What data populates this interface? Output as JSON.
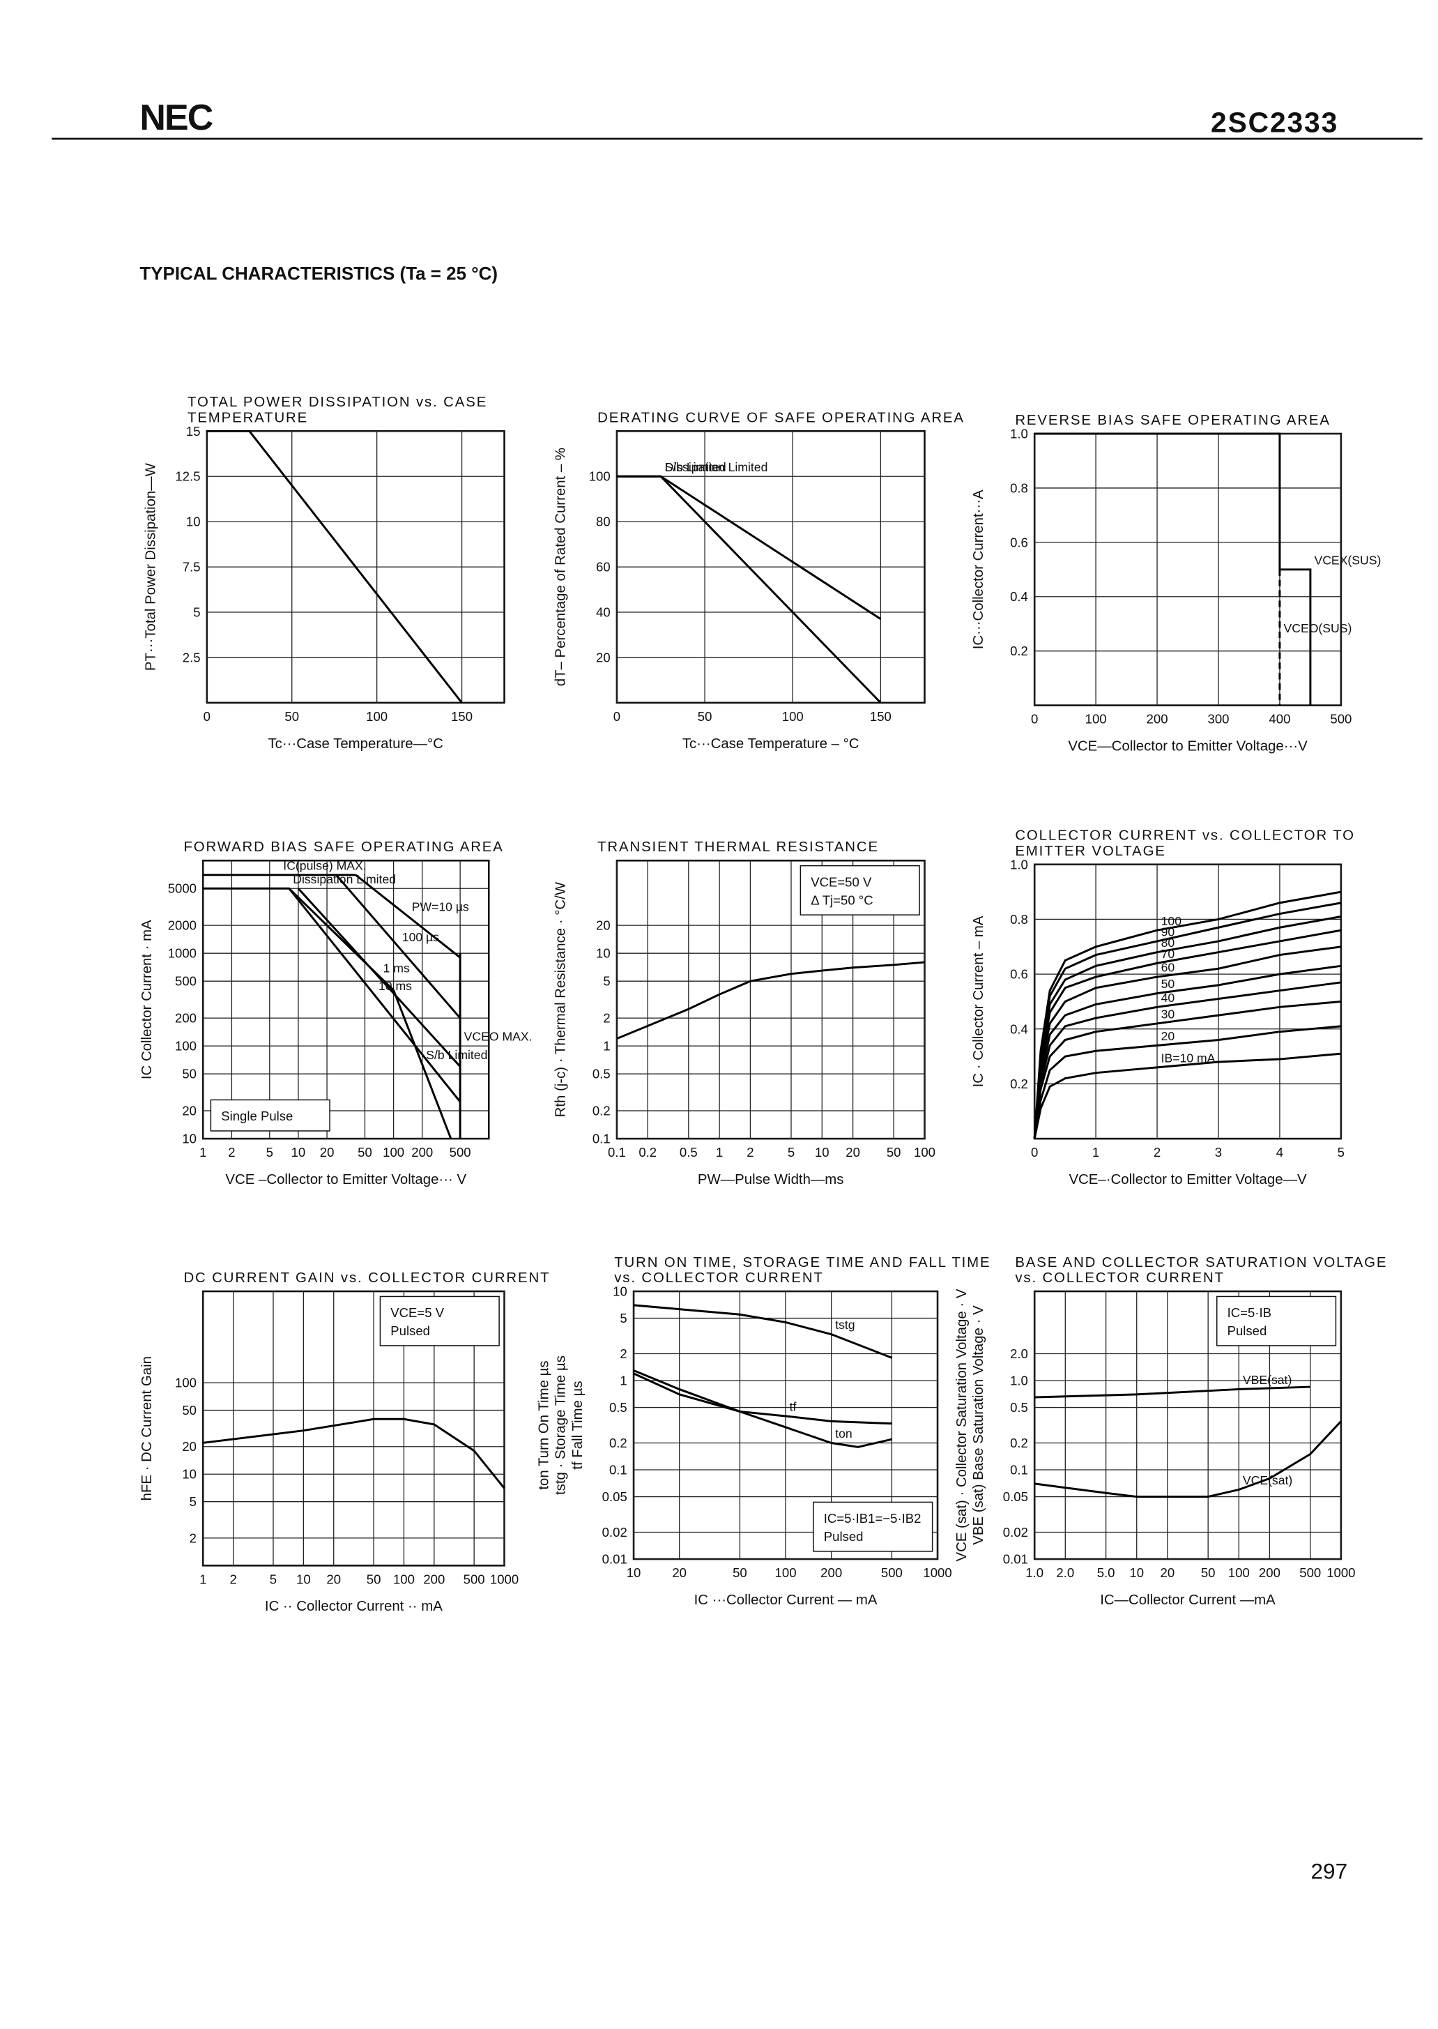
{
  "header": {
    "logo": "NEC",
    "part_number": "2SC2333"
  },
  "section_title": "TYPICAL CHARACTERISTICS (Ta = 25 °C)",
  "page_number": "297",
  "chart_data": [
    {
      "type": "line",
      "title": "TOTAL POWER DISSIPATION vs. CASE TEMPERATURE",
      "x_label": "Tc···Case Temperature—°C",
      "y_label": [
        "PT···Total Power Dissipation—W"
      ],
      "color": "#000000",
      "xlim": [
        0,
        175
      ],
      "ylim": [
        0,
        15
      ],
      "xticks": [
        0,
        50,
        100,
        150
      ],
      "yticks": [
        2.5,
        5,
        7.5,
        10,
        12.5,
        15
      ],
      "series": [
        {
          "x": [
            0,
            25,
            150
          ],
          "values": [
            15,
            15,
            0
          ]
        }
      ]
    },
    {
      "type": "line",
      "title": "DERATING CURVE OF SAFE OPERATING AREA",
      "x_label": "Tc···Case Temperature – °C",
      "y_label": [
        "dT– Percentage of Rated Current – %"
      ],
      "color": "#000000",
      "xlim": [
        0,
        175
      ],
      "ylim": [
        0,
        120
      ],
      "xticks": [
        0,
        50,
        100,
        150
      ],
      "yticks": [
        20,
        40,
        60,
        80,
        100
      ],
      "series": [
        {
          "name": "S/b Limited",
          "x": [
            0,
            25,
            150
          ],
          "values": [
            100,
            100,
            37
          ]
        },
        {
          "name": "Dissipation Limited",
          "x": [
            0,
            25,
            150
          ],
          "values": [
            100,
            100,
            0
          ]
        }
      ]
    },
    {
      "type": "line",
      "title": "REVERSE BIAS SAFE OPERATING AREA",
      "x_label": "VCE—Collector to Emitter Voltage···V",
      "y_label": [
        "IC···Collector Current···A"
      ],
      "color": "#000000",
      "xlim": [
        0,
        500
      ],
      "ylim": [
        0,
        1
      ],
      "xticks": [
        0,
        100,
        200,
        300,
        400,
        500
      ],
      "yticks": [
        0.2,
        0.4,
        0.6,
        0.8,
        {
          "value": 1,
          "label": "1.0"
        }
      ],
      "series": [
        {
          "name": "VCEX(SUS)",
          "x": [
            0,
            400,
            400,
            450,
            450
          ],
          "values": [
            1,
            1,
            0.5,
            0.5,
            0
          ]
        },
        {
          "name": "VCEO(SUS)",
          "dashed": true,
          "x": [
            400,
            400
          ],
          "values": [
            0.5,
            0
          ]
        }
      ]
    },
    {
      "type": "line",
      "title": "FORWARD BIAS SAFE OPERATING AREA",
      "x_label": "VCE –Collector to Emitter Voltage··· V",
      "y_label": [
        "IC  Collector Current · mA"
      ],
      "color": "#000000",
      "xscale": "log",
      "yscale": "log",
      "xlim": [
        1,
        1000
      ],
      "ylim": [
        10,
        10000
      ],
      "xticks": [
        1,
        2,
        5,
        10,
        20,
        50,
        100,
        200,
        500
      ],
      "yticks": [
        10,
        20,
        50,
        100,
        200,
        500,
        1000,
        2000,
        5000
      ],
      "annotations": [
        "Single Pulse"
      ],
      "series": [
        {
          "name": "IC(pulse) MAX.",
          "x": [
            1,
            40
          ],
          "values": [
            7000,
            7000
          ]
        },
        {
          "name": "PW=10 µs",
          "x": [
            40,
            500
          ],
          "values": [
            7000,
            900
          ]
        },
        {
          "name": "100 µs",
          "x": [
            25,
            500
          ],
          "values": [
            7000,
            200
          ]
        },
        {
          "name": "1 ms",
          "x": [
            10,
            500
          ],
          "values": [
            5000,
            60
          ]
        },
        {
          "name": "10 ms",
          "x": [
            8,
            500
          ],
          "values": [
            5000,
            25
          ]
        },
        {
          "name": "Dissipation Limited",
          "x": [
            1,
            8,
            100
          ],
          "values": [
            5000,
            5000,
            400
          ]
        },
        {
          "name": "S/b Limited",
          "x": [
            100,
            400
          ],
          "values": [
            400,
            10
          ]
        },
        {
          "name": "VCEO MAX.",
          "x": [
            500,
            500
          ],
          "values": [
            1000,
            10
          ]
        }
      ]
    },
    {
      "type": "line",
      "title": "TRANSIENT THERMAL RESISTANCE",
      "x_label": "PW—Pulse Width—ms",
      "y_label": [
        "Rth (j-c) · Thermal Resistance · °C/W"
      ],
      "color": "#000000",
      "xscale": "log",
      "yscale": "log",
      "xlim": [
        0.1,
        100
      ],
      "ylim": [
        0.1,
        100
      ],
      "xticks": [
        0.1,
        0.2,
        0.5,
        1,
        2,
        5,
        10,
        20,
        50,
        100
      ],
      "yticks": [
        0.1,
        0.2,
        0.5,
        1,
        2,
        5,
        10,
        20
      ],
      "annotations": [
        "VCE=50 V",
        "Δ Tj=50 °C"
      ],
      "series": [
        {
          "x": [
            0.1,
            0.5,
            1,
            2,
            5,
            10,
            20,
            50,
            100
          ],
          "values": [
            1.2,
            2.5,
            3.6,
            5,
            6,
            6.5,
            7,
            7.5,
            8
          ]
        }
      ]
    },
    {
      "type": "line",
      "title": "COLLECTOR CURRENT vs. COLLECTOR TO EMITTER VOLTAGE",
      "x_label": "VCE–·Collector to Emitter Voltage—V",
      "y_label": [
        "IC · Collector Current – mA"
      ],
      "color": "#000000",
      "xlim": [
        0,
        5
      ],
      "ylim": [
        0,
        1
      ],
      "xticks": [
        0,
        1,
        2,
        3,
        4,
        5
      ],
      "yticks": [
        0.2,
        0.4,
        0.6,
        0.8,
        {
          "value": 1,
          "label": "1.0"
        }
      ],
      "series": [
        {
          "name": "IB=10 mA",
          "x": [
            0,
            0.1,
            0.25,
            0.5,
            1,
            2,
            3,
            4,
            5
          ],
          "values": [
            0,
            0.11,
            0.19,
            0.22,
            0.24,
            0.26,
            0.28,
            0.29,
            0.31
          ]
        },
        {
          "name": "20",
          "x": [
            0,
            0.1,
            0.25,
            0.5,
            1,
            2,
            3,
            4,
            5
          ],
          "values": [
            0,
            0.14,
            0.25,
            0.3,
            0.32,
            0.34,
            0.36,
            0.39,
            0.41
          ]
        },
        {
          "name": "30",
          "x": [
            0,
            0.1,
            0.25,
            0.5,
            1,
            2,
            3,
            4,
            5
          ],
          "values": [
            0,
            0.18,
            0.3,
            0.36,
            0.39,
            0.42,
            0.45,
            0.48,
            0.5
          ]
        },
        {
          "name": "40",
          "x": [
            0,
            0.1,
            0.25,
            0.5,
            1,
            2,
            3,
            4,
            5
          ],
          "values": [
            0,
            0.2,
            0.34,
            0.41,
            0.44,
            0.48,
            0.51,
            0.54,
            0.57
          ]
        },
        {
          "name": "50",
          "x": [
            0,
            0.1,
            0.25,
            0.5,
            1,
            2,
            3,
            4,
            5
          ],
          "values": [
            0,
            0.22,
            0.38,
            0.45,
            0.49,
            0.53,
            0.56,
            0.6,
            0.63
          ]
        },
        {
          "name": "60",
          "x": [
            0,
            0.1,
            0.25,
            0.5,
            1,
            2,
            3,
            4,
            5
          ],
          "values": [
            0,
            0.25,
            0.42,
            0.5,
            0.55,
            0.59,
            0.62,
            0.67,
            0.7
          ]
        },
        {
          "name": "70",
          "x": [
            0,
            0.1,
            0.25,
            0.5,
            1,
            2,
            3,
            4,
            5
          ],
          "values": [
            0,
            0.27,
            0.46,
            0.55,
            0.59,
            0.64,
            0.68,
            0.72,
            0.76
          ]
        },
        {
          "name": "80",
          "x": [
            0,
            0.1,
            0.25,
            0.5,
            1,
            2,
            3,
            4,
            5
          ],
          "values": [
            0,
            0.28,
            0.49,
            0.58,
            0.63,
            0.68,
            0.72,
            0.77,
            0.81
          ]
        },
        {
          "name": "90",
          "x": [
            0,
            0.1,
            0.25,
            0.5,
            1,
            2,
            3,
            4,
            5
          ],
          "values": [
            0,
            0.3,
            0.52,
            0.62,
            0.67,
            0.72,
            0.77,
            0.82,
            0.86
          ]
        },
        {
          "name": "100",
          "x": [
            0,
            0.1,
            0.25,
            0.5,
            1,
            2,
            3,
            4,
            5
          ],
          "values": [
            0,
            0.32,
            0.54,
            0.65,
            0.7,
            0.76,
            0.8,
            0.86,
            0.9
          ]
        }
      ]
    },
    {
      "type": "line",
      "title": "DC CURRENT GAIN vs. COLLECTOR CURRENT",
      "x_label": "IC ·· Collector Current ·· mA",
      "y_label": [
        "hFE · DC Current Gain"
      ],
      "color": "#000000",
      "xscale": "log",
      "yscale": "log",
      "xlim": [
        1,
        1000
      ],
      "ylim": [
        1,
        1000
      ],
      "xticks": [
        1,
        2,
        5,
        10,
        20,
        50,
        100,
        200,
        500,
        1000
      ],
      "yticks": [
        2,
        5,
        10,
        20,
        50,
        100
      ],
      "annotations": [
        "VCE=5 V",
        "Pulsed"
      ],
      "series": [
        {
          "x": [
            1,
            10,
            50,
            100,
            200,
            500,
            1000
          ],
          "values": [
            22,
            30,
            40,
            40,
            35,
            18,
            7
          ]
        }
      ]
    },
    {
      "type": "line",
      "title": "TURN ON TIME, STORAGE TIME AND FALL TIME vs. COLLECTOR CURRENT",
      "x_label": "IC ···Collector Current — mA",
      "y_label": [
        "ton  Turn On Time  µs",
        "tstg · Storage Time  µs",
        "tf  Fall Time  µs"
      ],
      "color": "#000000",
      "xscale": "log",
      "yscale": "log",
      "xlim": [
        10,
        1000
      ],
      "ylim": [
        0.01,
        10
      ],
      "xticks": [
        10,
        20,
        50,
        100,
        200,
        500,
        1000
      ],
      "yticks": [
        0.01,
        0.02,
        0.05,
        0.1,
        0.2,
        0.5,
        1,
        2,
        5,
        10
      ],
      "annotations": [
        "IC=5·IB1=−5·IB2",
        "Pulsed"
      ],
      "series": [
        {
          "name": "tstg",
          "x": [
            10,
            50,
            100,
            200,
            500
          ],
          "values": [
            7,
            5.5,
            4.5,
            3.3,
            1.8
          ]
        },
        {
          "name": "tf",
          "x": [
            10,
            20,
            50,
            100,
            200,
            500
          ],
          "values": [
            1.2,
            0.7,
            0.45,
            0.4,
            0.35,
            0.33
          ]
        },
        {
          "name": "ton",
          "x": [
            10,
            20,
            50,
            100,
            200,
            300,
            500
          ],
          "values": [
            1.3,
            0.8,
            0.45,
            0.3,
            0.2,
            0.18,
            0.22
          ]
        }
      ]
    },
    {
      "type": "line",
      "title": "BASE AND COLLECTOR SATURATION VOLTAGE vs. COLLECTOR CURRENT",
      "x_label": "IC—Collector Current —mA",
      "y_label": [
        "VCE (sat) · Collector Saturation Voltage · V",
        "VBE (sat)  Base Saturation Voltage · V"
      ],
      "color": "#000000",
      "xscale": "log",
      "yscale": "log",
      "xlim": [
        1,
        1000
      ],
      "ylim": [
        0.01,
        10
      ],
      "xticks": [
        {
          "value": 1,
          "label": "1.0"
        },
        {
          "value": 2,
          "label": "2.0"
        },
        {
          "value": 5,
          "label": "5.0"
        },
        10,
        20,
        50,
        100,
        200,
        500,
        1000
      ],
      "yticks": [
        0.01,
        0.02,
        0.05,
        0.1,
        0.2,
        0.5,
        {
          "value": 1,
          "label": "1.0"
        },
        {
          "value": 2,
          "label": "2.0"
        }
      ],
      "annotations": [
        "IC=5·IB",
        "Pulsed"
      ],
      "series": [
        {
          "name": "VBE(sat)",
          "x": [
            1,
            10,
            100,
            500
          ],
          "values": [
            0.65,
            0.7,
            0.8,
            0.85
          ]
        },
        {
          "name": "VCE(sat)",
          "x": [
            1,
            5,
            10,
            50,
            100,
            200,
            500,
            1000
          ],
          "values": [
            0.07,
            0.055,
            0.05,
            0.05,
            0.06,
            0.08,
            0.15,
            0.35
          ]
        }
      ]
    }
  ]
}
